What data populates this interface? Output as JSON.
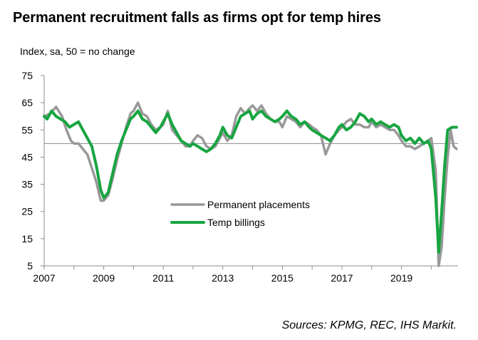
{
  "title": "Permanent recruitment falls as firms opt for temp hires",
  "chart_data": {
    "type": "line",
    "title": "Permanent recruitment falls as firms opt for temp hires",
    "ylabel": "Index, sa, 50 = no change",
    "source": "Sources: KPMG, REC, IHS Markit.",
    "ylim": [
      5,
      75
    ],
    "yticks": [
      5,
      15,
      25,
      35,
      45,
      55,
      65,
      75
    ],
    "xlim": [
      2007.0,
      2020.9
    ],
    "xticks": [
      "2007",
      "2009",
      "2011",
      "2013",
      "2015",
      "2017",
      "2019"
    ],
    "reference_line": 50,
    "grid": false,
    "legend_position": "center",
    "series": [
      {
        "name": "Permanent placements",
        "color": "#999999",
        "points": [
          [
            2007.0,
            60
          ],
          [
            2007.2,
            61
          ],
          [
            2007.4,
            63.5
          ],
          [
            2007.6,
            60
          ],
          [
            2007.75,
            55
          ],
          [
            2007.9,
            51
          ],
          [
            2008.0,
            50
          ],
          [
            2008.15,
            50
          ],
          [
            2008.3,
            48
          ],
          [
            2008.45,
            46
          ],
          [
            2008.6,
            41
          ],
          [
            2008.75,
            36
          ],
          [
            2008.9,
            29
          ],
          [
            2009.0,
            29
          ],
          [
            2009.15,
            31
          ],
          [
            2009.3,
            37
          ],
          [
            2009.45,
            44
          ],
          [
            2009.6,
            50
          ],
          [
            2009.75,
            56
          ],
          [
            2009.9,
            61
          ],
          [
            2010.0,
            62
          ],
          [
            2010.15,
            65
          ],
          [
            2010.3,
            61
          ],
          [
            2010.45,
            60
          ],
          [
            2010.6,
            57
          ],
          [
            2010.75,
            55
          ],
          [
            2010.9,
            56
          ],
          [
            2011.0,
            57
          ],
          [
            2011.15,
            62
          ],
          [
            2011.3,
            55
          ],
          [
            2011.45,
            53
          ],
          [
            2011.6,
            51
          ],
          [
            2011.75,
            49
          ],
          [
            2011.9,
            49
          ],
          [
            2012.0,
            51
          ],
          [
            2012.15,
            53
          ],
          [
            2012.3,
            52
          ],
          [
            2012.45,
            49
          ],
          [
            2012.6,
            48
          ],
          [
            2012.75,
            49
          ],
          [
            2012.9,
            52
          ],
          [
            2013.0,
            54
          ],
          [
            2013.15,
            51
          ],
          [
            2013.3,
            53
          ],
          [
            2013.45,
            60
          ],
          [
            2013.6,
            63
          ],
          [
            2013.75,
            61
          ],
          [
            2013.9,
            63
          ],
          [
            2014.0,
            64
          ],
          [
            2014.15,
            62
          ],
          [
            2014.3,
            64
          ],
          [
            2014.45,
            61
          ],
          [
            2014.6,
            59
          ],
          [
            2014.75,
            58
          ],
          [
            2014.9,
            58
          ],
          [
            2015.0,
            56
          ],
          [
            2015.15,
            60
          ],
          [
            2015.3,
            59
          ],
          [
            2015.45,
            58
          ],
          [
            2015.6,
            56
          ],
          [
            2015.75,
            58
          ],
          [
            2015.9,
            57
          ],
          [
            2016.0,
            56
          ],
          [
            2016.15,
            55
          ],
          [
            2016.3,
            53
          ],
          [
            2016.45,
            46
          ],
          [
            2016.6,
            50
          ],
          [
            2016.75,
            53
          ],
          [
            2016.9,
            55
          ],
          [
            2017.0,
            56
          ],
          [
            2017.15,
            58
          ],
          [
            2017.3,
            59
          ],
          [
            2017.45,
            57
          ],
          [
            2017.6,
            57
          ],
          [
            2017.75,
            56
          ],
          [
            2017.9,
            56
          ],
          [
            2018.0,
            58
          ],
          [
            2018.15,
            56
          ],
          [
            2018.3,
            57
          ],
          [
            2018.45,
            56
          ],
          [
            2018.6,
            55
          ],
          [
            2018.75,
            55
          ],
          [
            2018.9,
            53
          ],
          [
            2019.0,
            51
          ],
          [
            2019.15,
            49
          ],
          [
            2019.3,
            49
          ],
          [
            2019.45,
            48
          ],
          [
            2019.6,
            49
          ],
          [
            2019.75,
            50
          ],
          [
            2019.9,
            51
          ],
          [
            2020.0,
            52
          ],
          [
            2020.15,
            40
          ],
          [
            2020.25,
            5
          ],
          [
            2020.35,
            12
          ],
          [
            2020.45,
            30
          ],
          [
            2020.55,
            45
          ],
          [
            2020.65,
            55
          ],
          [
            2020.75,
            49
          ],
          [
            2020.85,
            48
          ]
        ]
      },
      {
        "name": "Temp billings",
        "color": "#17a541",
        "points": [
          [
            2007.0,
            60
          ],
          [
            2007.1,
            59
          ],
          [
            2007.25,
            62
          ],
          [
            2007.4,
            60
          ],
          [
            2007.55,
            59
          ],
          [
            2007.7,
            58
          ],
          [
            2007.85,
            56
          ],
          [
            2008.0,
            57
          ],
          [
            2008.15,
            58
          ],
          [
            2008.3,
            55
          ],
          [
            2008.45,
            52
          ],
          [
            2008.6,
            49
          ],
          [
            2008.75,
            42
          ],
          [
            2008.9,
            33
          ],
          [
            2009.0,
            30
          ],
          [
            2009.15,
            32
          ],
          [
            2009.3,
            39
          ],
          [
            2009.45,
            46
          ],
          [
            2009.6,
            51
          ],
          [
            2009.75,
            55
          ],
          [
            2009.9,
            59
          ],
          [
            2010.0,
            60
          ],
          [
            2010.15,
            62
          ],
          [
            2010.3,
            59
          ],
          [
            2010.45,
            58
          ],
          [
            2010.6,
            56
          ],
          [
            2010.75,
            54
          ],
          [
            2010.9,
            56
          ],
          [
            2011.0,
            58
          ],
          [
            2011.15,
            61
          ],
          [
            2011.3,
            57
          ],
          [
            2011.45,
            54
          ],
          [
            2011.6,
            51
          ],
          [
            2011.75,
            50
          ],
          [
            2011.9,
            49
          ],
          [
            2012.0,
            50
          ],
          [
            2012.15,
            49
          ],
          [
            2012.3,
            48
          ],
          [
            2012.45,
            47
          ],
          [
            2012.6,
            48
          ],
          [
            2012.75,
            50
          ],
          [
            2012.9,
            53
          ],
          [
            2013.0,
            56
          ],
          [
            2013.15,
            53
          ],
          [
            2013.3,
            52
          ],
          [
            2013.45,
            56
          ],
          [
            2013.6,
            60
          ],
          [
            2013.75,
            61
          ],
          [
            2013.9,
            62
          ],
          [
            2014.0,
            59
          ],
          [
            2014.15,
            61
          ],
          [
            2014.3,
            62
          ],
          [
            2014.45,
            60
          ],
          [
            2014.6,
            59
          ],
          [
            2014.75,
            58
          ],
          [
            2014.9,
            59
          ],
          [
            2015.0,
            60
          ],
          [
            2015.15,
            62
          ],
          [
            2015.3,
            60
          ],
          [
            2015.45,
            59
          ],
          [
            2015.6,
            57
          ],
          [
            2015.75,
            58
          ],
          [
            2015.9,
            56
          ],
          [
            2016.0,
            55
          ],
          [
            2016.15,
            54
          ],
          [
            2016.3,
            53
          ],
          [
            2016.45,
            52
          ],
          [
            2016.6,
            51
          ],
          [
            2016.75,
            53
          ],
          [
            2016.9,
            56
          ],
          [
            2017.0,
            57
          ],
          [
            2017.15,
            55
          ],
          [
            2017.3,
            56
          ],
          [
            2017.45,
            58
          ],
          [
            2017.6,
            61
          ],
          [
            2017.75,
            60
          ],
          [
            2017.9,
            58
          ],
          [
            2018.0,
            59
          ],
          [
            2018.15,
            57
          ],
          [
            2018.3,
            58
          ],
          [
            2018.45,
            57
          ],
          [
            2018.6,
            56
          ],
          [
            2018.75,
            57
          ],
          [
            2018.9,
            56
          ],
          [
            2019.0,
            53
          ],
          [
            2019.15,
            51
          ],
          [
            2019.3,
            52
          ],
          [
            2019.45,
            50
          ],
          [
            2019.6,
            52
          ],
          [
            2019.75,
            50
          ],
          [
            2019.9,
            51
          ],
          [
            2020.0,
            48
          ],
          [
            2020.15,
            30
          ],
          [
            2020.25,
            10
          ],
          [
            2020.35,
            25
          ],
          [
            2020.45,
            42
          ],
          [
            2020.55,
            55
          ],
          [
            2020.7,
            56
          ],
          [
            2020.85,
            56
          ]
        ]
      }
    ]
  }
}
